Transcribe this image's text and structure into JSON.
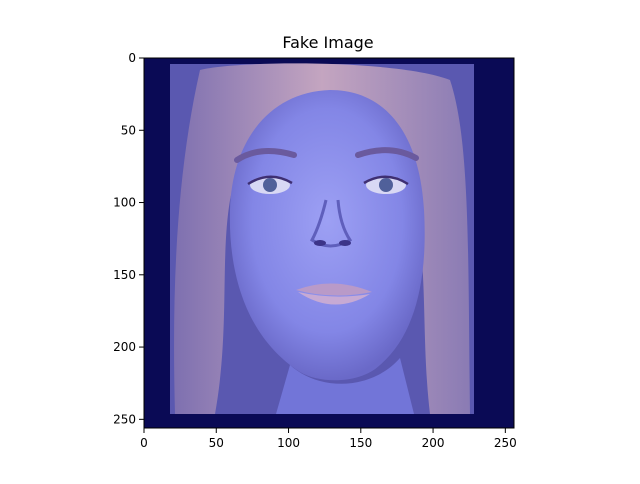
{
  "chart_data": {
    "type": "image",
    "title": "Fake Image",
    "image_size": [
      256,
      256
    ],
    "xlim": [
      0,
      256
    ],
    "ylim": [
      256,
      0
    ],
    "x_ticks": [
      0,
      50,
      100,
      150,
      200,
      250
    ],
    "y_ticks": [
      0,
      50,
      100,
      150,
      200,
      250
    ],
    "content": "face photo with blue/purple tint",
    "colors": {
      "background_dark": "#0a0a55",
      "image_tint": "#7b7fe0",
      "hair": "#b79ab4",
      "skin": "#8f92f0",
      "axis": "#000000"
    }
  }
}
